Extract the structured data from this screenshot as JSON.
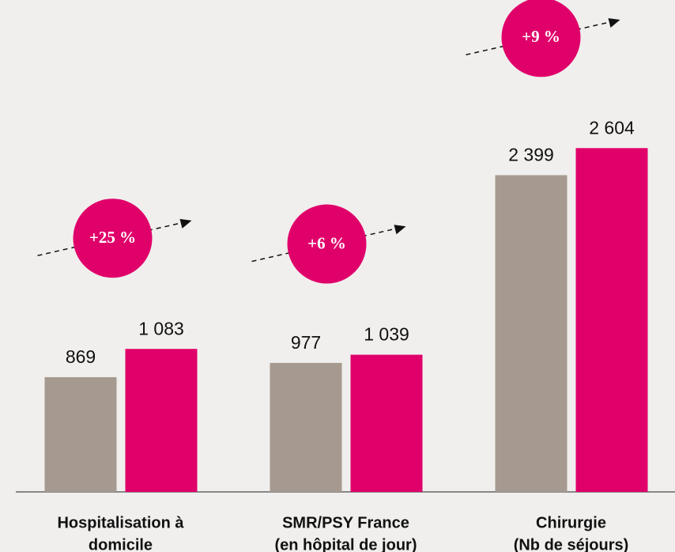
{
  "chart_data": {
    "type": "bar",
    "categories": [
      [
        "Hospitalisation à",
        "domicile"
      ],
      [
        "SMR/PSY France",
        "(en hôpital de jour)"
      ],
      [
        "Chirurgie",
        "(Nb de séjours)"
      ]
    ],
    "series": [
      {
        "color": "#a69a90",
        "values": [
          869,
          977,
          2399
        ],
        "value_labels": [
          "869",
          "977",
          "2 399"
        ]
      },
      {
        "color": "#e0006a",
        "values": [
          1083,
          1039,
          2604
        ],
        "value_labels": [
          "1 083",
          "1 039",
          "2 604"
        ]
      }
    ],
    "annotations": [
      "+25 %",
      "+6 %",
      "+9 %"
    ],
    "ylim": [
      0,
      3600
    ]
  }
}
